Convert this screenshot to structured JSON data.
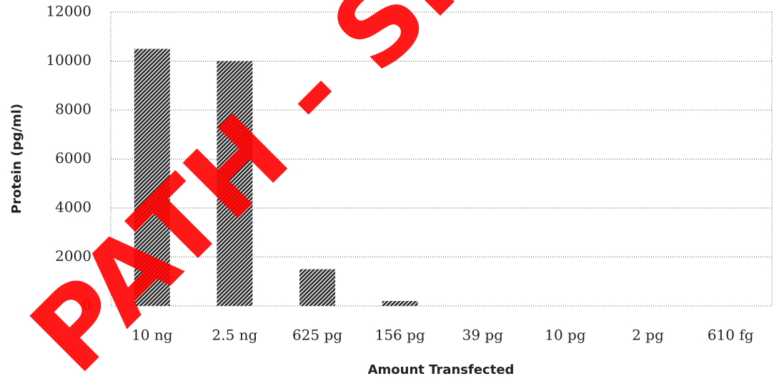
{
  "chart_data": {
    "type": "bar",
    "categories": [
      "10 ng",
      "2.5 ng",
      "625 pg",
      "156 pg",
      "39 pg",
      "10 pg",
      "2 pg",
      "610 fg"
    ],
    "values": [
      10500,
      10000,
      1500,
      200,
      0,
      0,
      0,
      0
    ],
    "color": "#2a2a2a",
    "xlabel": "Amount Transfected",
    "ylabel": "Protein (pg/ml)",
    "ylim": [
      0,
      12000
    ],
    "yticks": [
      0,
      2000,
      4000,
      6000,
      8000,
      10000,
      12000
    ],
    "grid": true,
    "watermark": "PATH - SH"
  }
}
